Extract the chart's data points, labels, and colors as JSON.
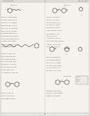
{
  "background_color": "#f0ede8",
  "text_color": "#555555",
  "line_color": "#888888",
  "page_bg": "#e8e4df"
}
